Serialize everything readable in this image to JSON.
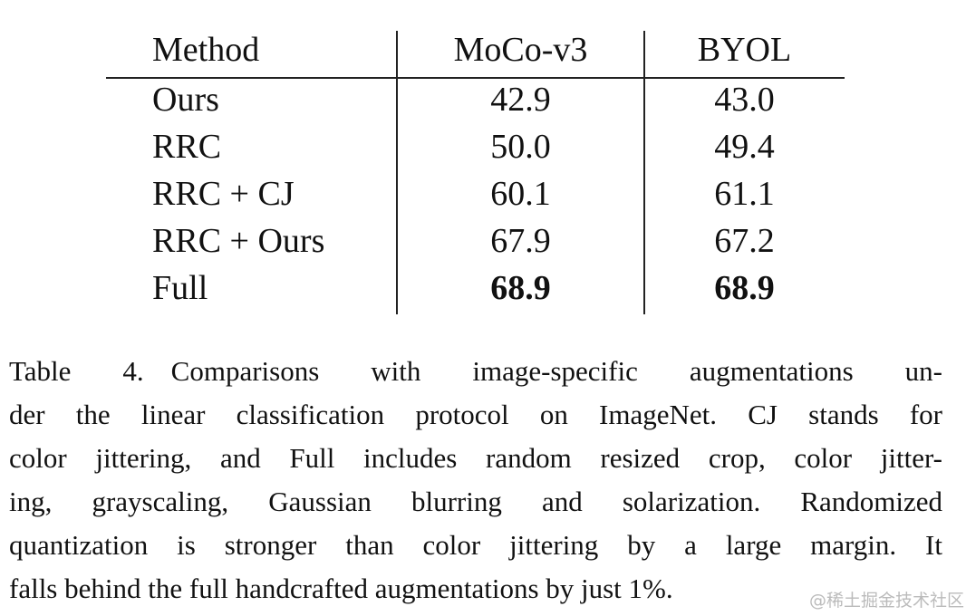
{
  "table": {
    "columns": [
      "Method",
      "MoCo-v3",
      "BYOL"
    ],
    "rows": [
      [
        "Ours",
        "42.9",
        "43.0"
      ],
      [
        "RRC",
        "50.0",
        "49.4"
      ],
      [
        "RRC + CJ",
        "60.1",
        "61.1"
      ],
      [
        "RRC + Ours",
        "67.9",
        "67.2"
      ],
      [
        "Full",
        "68.9",
        "68.9"
      ]
    ]
  },
  "caption": {
    "label": "Table 4.",
    "lines": [
      "Comparisons with image-specific augmentations un-",
      "der the linear classification protocol on ImageNet.  CJ stands for",
      "color jittering, and Full includes random resized crop, color jitter-",
      "ing, grayscaling, Gaussian blurring and solarization. Randomized",
      "quantization is stronger than color jittering by a large margin.  It",
      "falls behind the full handcrafted augmentations by just 1%."
    ]
  },
  "watermark": "@稀土掘金技术社区"
}
